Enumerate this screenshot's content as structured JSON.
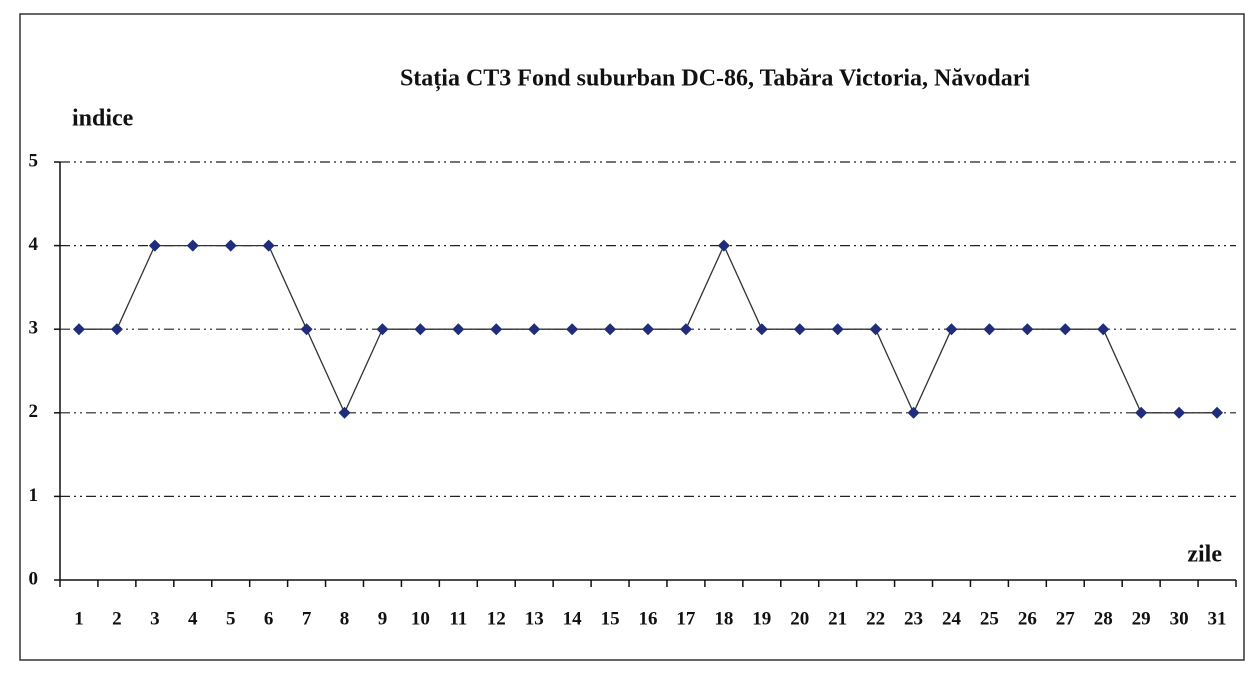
{
  "chart_data": {
    "type": "line",
    "title": "Stația CT3 Fond suburban DC-86, Tabăra Victoria, Năvodari",
    "y_label": "indice",
    "x_label": "zile",
    "categories": [
      "1",
      "2",
      "3",
      "4",
      "5",
      "6",
      "7",
      "8",
      "9",
      "10",
      "11",
      "12",
      "13",
      "14",
      "15",
      "16",
      "17",
      "18",
      "19",
      "20",
      "21",
      "22",
      "23",
      "24",
      "25",
      "26",
      "27",
      "28",
      "29",
      "30",
      "31"
    ],
    "values": [
      3,
      3,
      4,
      4,
      4,
      4,
      3,
      2,
      3,
      3,
      3,
      3,
      3,
      3,
      3,
      3,
      3,
      4,
      3,
      3,
      3,
      3,
      2,
      3,
      3,
      3,
      3,
      3,
      2,
      2,
      2
    ],
    "color": "#1f2d7a",
    "ylim": [
      0,
      5
    ],
    "yticks": [
      0,
      1,
      2,
      3,
      4,
      5
    ],
    "grid": true
  }
}
